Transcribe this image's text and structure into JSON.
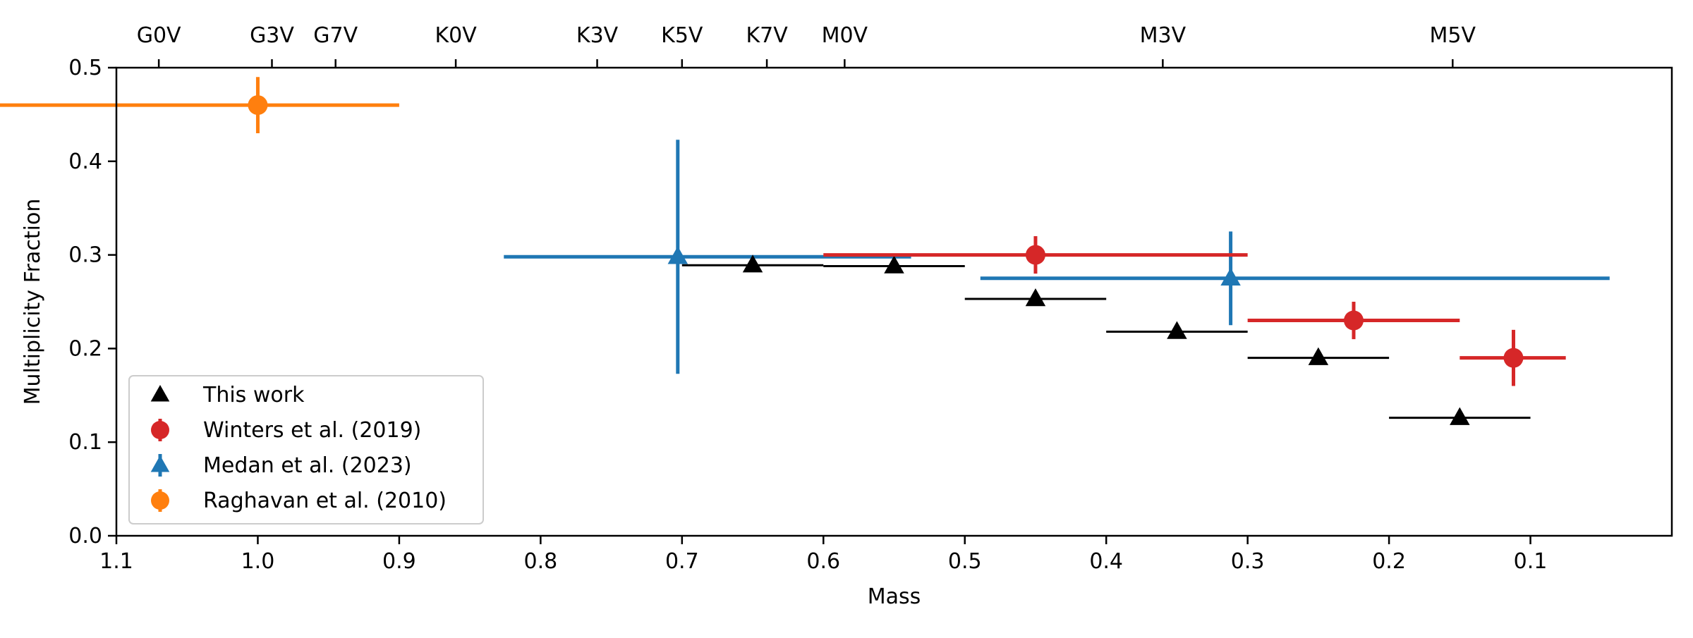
{
  "chart_data": {
    "type": "scatter",
    "xlabel": "Mass",
    "ylabel": "Multiplicity Fraction",
    "xlim": [
      1.1,
      0.0
    ],
    "ylim": [
      0.0,
      0.5
    ],
    "x_axis_inverted": true,
    "x_ticks": [
      1.1,
      1.0,
      0.9,
      0.8,
      0.7,
      0.6,
      0.5,
      0.4,
      0.3,
      0.2,
      0.1
    ],
    "x_tick_labels": [
      "1.1",
      "1.0",
      "0.9",
      "0.8",
      "0.7",
      "0.6",
      "0.5",
      "0.4",
      "0.3",
      "0.2",
      "0.1"
    ],
    "y_ticks": [
      0.0,
      0.1,
      0.2,
      0.3,
      0.4,
      0.5
    ],
    "y_tick_labels": [
      "0.0",
      "0.1",
      "0.2",
      "0.3",
      "0.4",
      "0.5"
    ],
    "top_axis_ticks": [
      {
        "label": "G0V",
        "mass": 1.07
      },
      {
        "label": "G3V",
        "mass": 0.99
      },
      {
        "label": "G7V",
        "mass": 0.945
      },
      {
        "label": "K0V",
        "mass": 0.86
      },
      {
        "label": "K3V",
        "mass": 0.76
      },
      {
        "label": "K5V",
        "mass": 0.7
      },
      {
        "label": "K7V",
        "mass": 0.64
      },
      {
        "label": "M0V",
        "mass": 0.585
      },
      {
        "label": "M3V",
        "mass": 0.36
      },
      {
        "label": "M5V",
        "mass": 0.155
      }
    ],
    "grid": false,
    "legend_position": "lower-left",
    "series": [
      {
        "name": "This work",
        "marker": "triangle",
        "color": "#000000",
        "points": [
          {
            "x": 0.65,
            "y": 0.289,
            "xerr_low": 0.05,
            "xerr_high": 0.05,
            "yerr_low": 0.0,
            "yerr_high": 0.0
          },
          {
            "x": 0.55,
            "y": 0.288,
            "xerr_low": 0.05,
            "xerr_high": 0.05,
            "yerr_low": 0.0,
            "yerr_high": 0.0
          },
          {
            "x": 0.45,
            "y": 0.253,
            "xerr_low": 0.05,
            "xerr_high": 0.05,
            "yerr_low": 0.0,
            "yerr_high": 0.0
          },
          {
            "x": 0.35,
            "y": 0.218,
            "xerr_low": 0.05,
            "xerr_high": 0.05,
            "yerr_low": 0.0,
            "yerr_high": 0.0
          },
          {
            "x": 0.25,
            "y": 0.19,
            "xerr_low": 0.05,
            "xerr_high": 0.05,
            "yerr_low": 0.0,
            "yerr_high": 0.0
          },
          {
            "x": 0.15,
            "y": 0.126,
            "xerr_low": 0.05,
            "xerr_high": 0.05,
            "yerr_low": 0.0,
            "yerr_high": 0.0
          }
        ]
      },
      {
        "name": "Winters et al. (2019)",
        "marker": "circle",
        "color": "#d62728",
        "points": [
          {
            "x": 0.45,
            "y": 0.3,
            "xerr_low": 0.15,
            "xerr_high": 0.15,
            "yerr_low": 0.02,
            "yerr_high": 0.02
          },
          {
            "x": 0.225,
            "y": 0.23,
            "xerr_low": 0.075,
            "xerr_high": 0.075,
            "yerr_low": 0.02,
            "yerr_high": 0.02
          },
          {
            "x": 0.112,
            "y": 0.19,
            "xerr_low": 0.038,
            "xerr_high": 0.037,
            "yerr_low": 0.03,
            "yerr_high": 0.03
          }
        ]
      },
      {
        "name": "Medan et al. (2023)",
        "marker": "triangle",
        "color": "#1f77b4",
        "points": [
          {
            "x": 0.703,
            "y": 0.298,
            "xerr_low": 0.123,
            "xerr_high": 0.165,
            "yerr_low": 0.125,
            "yerr_high": 0.125
          },
          {
            "x": 0.312,
            "y": 0.275,
            "xerr_low": 0.177,
            "xerr_high": 0.268,
            "yerr_low": 0.05,
            "yerr_high": 0.05
          }
        ]
      },
      {
        "name": "Raghavan et al. (2010)",
        "marker": "circle",
        "color": "#ff7f0e",
        "points": [
          {
            "x": 1.0,
            "y": 0.46,
            "xerr_low": 0.25,
            "xerr_high": 0.1,
            "yerr_low": 0.03,
            "yerr_high": 0.03
          }
        ]
      }
    ],
    "legend_order": [
      "This work",
      "Winters et al. (2019)",
      "Medan et al. (2023)",
      "Raghavan et al. (2010)"
    ]
  }
}
